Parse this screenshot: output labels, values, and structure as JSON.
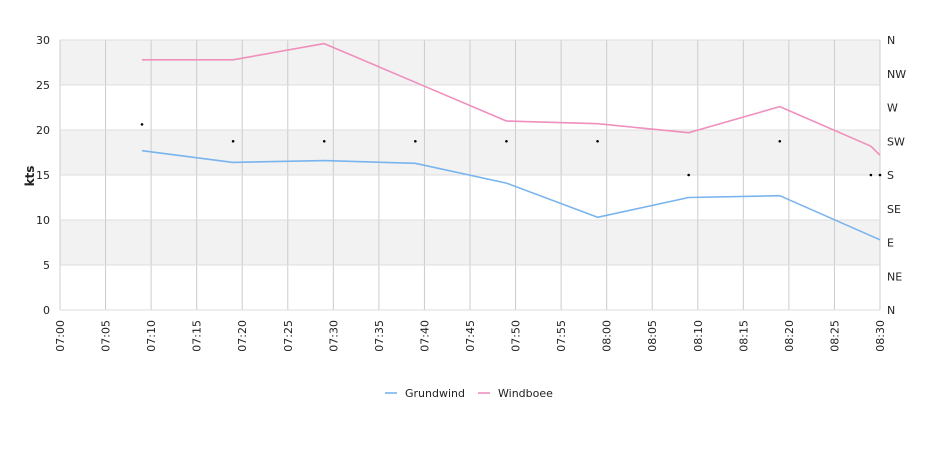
{
  "chart_data": {
    "type": "line",
    "ylabel": "kts",
    "ylim": [
      0,
      30
    ],
    "y_ticks": [
      0,
      5,
      10,
      15,
      20,
      25,
      30
    ],
    "x_ticks": [
      "07:00",
      "07:05",
      "07:10",
      "07:15",
      "07:20",
      "07:25",
      "07:30",
      "07:35",
      "07:40",
      "07:45",
      "07:50",
      "07:55",
      "08:00",
      "08:05",
      "08:10",
      "08:15",
      "08:20",
      "08:25",
      "08:30"
    ],
    "right_axis_labels": [
      "N",
      "NE",
      "E",
      "SE",
      "S",
      "SW",
      "W",
      "NW",
      "N"
    ],
    "grid": true,
    "legend_position": "bottom",
    "series": [
      {
        "name": "Grundwind",
        "color": "#7ab4ee",
        "x": [
          "07:09",
          "07:19",
          "07:29",
          "07:39",
          "07:49",
          "07:59",
          "08:09",
          "08:19",
          "08:30"
        ],
        "values": [
          17.7,
          16.4,
          16.6,
          16.3,
          14.1,
          10.3,
          12.5,
          12.7,
          7.8
        ]
      },
      {
        "name": "Windboee",
        "color": "#ef8fbd",
        "x": [
          "07:09",
          "07:19",
          "07:29",
          "07:39",
          "07:49",
          "07:59",
          "08:09",
          "08:19",
          "08:29",
          "08:30"
        ],
        "values": [
          27.8,
          27.8,
          29.6,
          25.3,
          21.0,
          20.7,
          19.7,
          22.6,
          18.2,
          17.2
        ]
      }
    ],
    "direction_points": {
      "x": [
        "07:09",
        "07:19",
        "07:29",
        "07:39",
        "07:49",
        "07:59",
        "08:09",
        "08:19",
        "08:29",
        "08:30"
      ],
      "values": [
        "WSW",
        "SW",
        "SW",
        "SW",
        "SW",
        "SW",
        "S",
        "SW",
        "S",
        "S"
      ],
      "compass_scale": [
        "N",
        "NNE",
        "NE",
        "ENE",
        "E",
        "ESE",
        "SE",
        "SSE",
        "S",
        "SSW",
        "SW",
        "WSW",
        "W",
        "WNW",
        "NW",
        "NNW",
        "N"
      ]
    }
  }
}
